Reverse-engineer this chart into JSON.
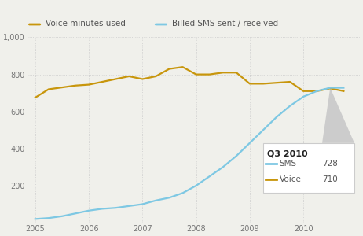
{
  "voice_x": [
    2005.0,
    2005.25,
    2005.5,
    2005.75,
    2006.0,
    2006.25,
    2006.5,
    2006.75,
    2007.0,
    2007.25,
    2007.5,
    2007.75,
    2008.0,
    2008.25,
    2008.5,
    2008.75,
    2009.0,
    2009.25,
    2009.5,
    2009.75,
    2010.0,
    2010.25,
    2010.5,
    2010.75
  ],
  "voice_y": [
    675,
    720,
    730,
    740,
    745,
    760,
    775,
    790,
    775,
    790,
    830,
    840,
    800,
    800,
    810,
    810,
    750,
    750,
    755,
    760,
    710,
    710,
    725,
    710
  ],
  "sms_x": [
    2005.0,
    2005.25,
    2005.5,
    2005.75,
    2006.0,
    2006.25,
    2006.5,
    2006.75,
    2007.0,
    2007.25,
    2007.5,
    2007.75,
    2008.0,
    2008.25,
    2008.5,
    2008.75,
    2009.0,
    2009.25,
    2009.5,
    2009.75,
    2010.0,
    2010.25,
    2010.5,
    2010.75
  ],
  "sms_y": [
    20,
    25,
    35,
    50,
    65,
    75,
    80,
    90,
    100,
    120,
    135,
    160,
    200,
    250,
    300,
    360,
    430,
    500,
    570,
    630,
    680,
    710,
    728,
    728
  ],
  "voice_color": "#c8960c",
  "sms_color": "#7ec8e3",
  "spike_color": "#cccccc",
  "background_color": "#f0f0eb",
  "grid_color": "#cccccc",
  "ylim": [
    0,
    1000
  ],
  "yticks": [
    0,
    200,
    400,
    600,
    800,
    1000
  ],
  "ytick_labels": [
    "",
    "200",
    "400",
    "600",
    "800",
    "1,000"
  ],
  "xticks": [
    2005,
    2006,
    2007,
    2008,
    2009,
    2010
  ],
  "xlim_left": 2004.85,
  "xlim_right": 2011.05,
  "legend_title": "Q3 2010",
  "legend_sms_val": "728",
  "legend_voice_val": "710",
  "top_legend_voice": "Voice minutes used",
  "top_legend_sms": "Billed SMS sent / received",
  "line_width": 1.6
}
